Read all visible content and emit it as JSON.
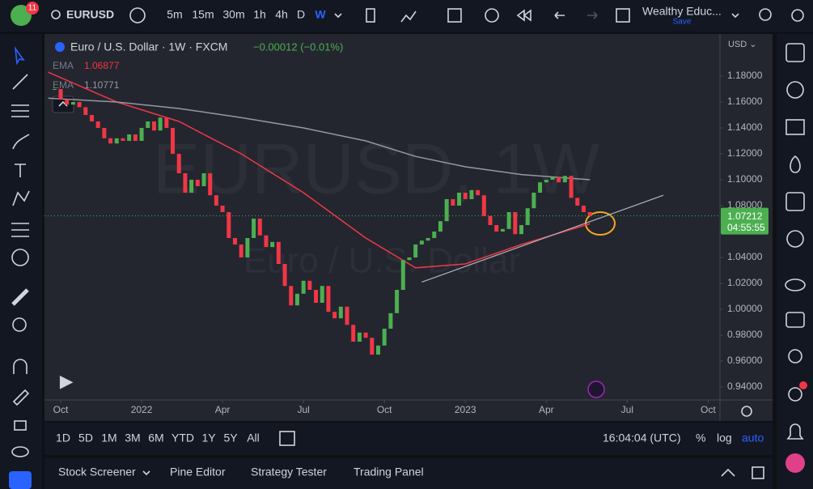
{
  "top_bar": {
    "badge": "11",
    "symbol": "EURUSD",
    "intervals": [
      "5m",
      "15m",
      "30m",
      "1h",
      "4h",
      "D",
      "W"
    ],
    "layout_name": "Wealthy Educ...",
    "save": "Save"
  },
  "chart_data": {
    "type": "candlestick",
    "title": "Euro / U.S. Dollar · 1W · FXCM",
    "change": "−0.00012 (−0.01%)",
    "watermark": "EURUSD, 1W",
    "watermark_subtitle": "Euro / U.S. Dollar",
    "currency": "USD ⌄",
    "x": [
      0,
      1,
      2,
      3,
      4,
      5,
      6,
      7,
      8,
      9,
      10,
      11,
      12,
      13,
      14,
      15,
      16,
      17,
      18,
      19,
      20,
      21,
      22,
      23,
      24,
      25,
      26,
      27,
      28,
      29,
      30,
      31,
      32,
      33,
      34,
      35,
      36,
      37,
      38,
      39,
      40,
      41,
      42,
      43,
      44,
      45,
      46,
      47,
      48,
      49,
      50,
      51,
      52,
      53,
      54,
      55,
      56,
      57,
      58,
      59,
      60,
      61,
      62,
      63,
      64,
      65,
      66,
      67,
      68,
      69,
      70,
      71,
      72,
      73,
      74,
      75,
      76,
      77,
      78,
      79,
      80,
      81,
      82,
      83,
      84,
      85,
      86
    ],
    "closes": [
      1.17,
      1.162,
      1.158,
      1.16,
      1.156,
      1.15,
      1.145,
      1.14,
      1.132,
      1.128,
      1.132,
      1.13,
      1.135,
      1.13,
      1.14,
      1.145,
      1.138,
      1.148,
      1.14,
      1.12,
      1.105,
      1.09,
      1.1,
      1.095,
      1.105,
      1.088,
      1.08,
      1.075,
      1.055,
      1.05,
      1.04,
      1.055,
      1.07,
      1.057,
      1.048,
      1.052,
      1.035,
      1.018,
      1.003,
      1.012,
      1.022,
      1.015,
      1.005,
      1.018,
      0.998,
      0.993,
      1.002,
      0.988,
      0.975,
      0.982,
      0.978,
      0.965,
      0.972,
      0.985,
      0.997,
      1.015,
      1.038,
      1.04,
      1.05,
      1.053,
      1.055,
      1.06,
      1.068,
      1.085,
      1.08,
      1.09,
      1.085,
      1.092,
      1.088,
      1.072,
      1.065,
      1.06,
      1.062,
      1.075,
      1.058,
      1.065,
      1.078,
      1.09,
      1.098,
      1.1,
      1.102,
      1.098,
      1.103,
      1.086,
      1.08,
      1.075,
      1.072
    ],
    "colors": {
      "up": "#4caf50",
      "down": "#f23645"
    },
    "xlim": [
      -1.6,
      106.9
    ],
    "xticks": [
      {
        "value": 1,
        "label": "Oct"
      },
      {
        "value": 14,
        "label": "2022"
      },
      {
        "value": 27,
        "label": "Apr"
      },
      {
        "value": 40,
        "label": "Jul"
      },
      {
        "value": 53,
        "label": "Oct"
      },
      {
        "value": 66,
        "label": "2023"
      },
      {
        "value": 79,
        "label": "Apr"
      },
      {
        "value": 92,
        "label": "Jul"
      },
      {
        "value": 105,
        "label": "Oct"
      }
    ],
    "ylim": [
      0.93,
      1.2125
    ],
    "yticks": [
      {
        "value": 1.18,
        "label": "1.18000"
      },
      {
        "value": 1.16,
        "label": "1.16000"
      },
      {
        "value": 1.14,
        "label": "1.14000"
      },
      {
        "value": 1.12,
        "label": "1.12000"
      },
      {
        "value": 1.1,
        "label": "1.10000"
      },
      {
        "value": 1.08,
        "label": "1.08000"
      },
      {
        "value": 1.04,
        "label": "1.04000"
      },
      {
        "value": 1.02,
        "label": "1.02000"
      },
      {
        "value": 1.0,
        "label": "1.00000"
      },
      {
        "value": 0.98,
        "label": "0.98000"
      },
      {
        "value": 0.96,
        "label": "0.96000"
      },
      {
        "value": 0.94,
        "label": "0.94000"
      }
    ],
    "indicators": [
      {
        "name": "EMA",
        "value_label": "1.06877",
        "color": "#f23645",
        "x": [
          -1,
          10,
          20,
          30,
          40,
          50,
          58,
          66,
          75,
          86
        ],
        "values": [
          1.183,
          1.16,
          1.145,
          1.12,
          1.09,
          1.055,
          1.032,
          1.035,
          1.05,
          1.066
        ]
      },
      {
        "name": "EMA",
        "value_label": "1.10771",
        "color": "#9598a1",
        "x": [
          -1,
          10,
          20,
          30,
          40,
          50,
          58,
          66,
          75,
          86
        ],
        "values": [
          1.163,
          1.16,
          1.155,
          1.148,
          1.14,
          1.13,
          1.118,
          1.11,
          1.104,
          1.1
        ]
      }
    ],
    "trendline": {
      "x": [
        59,
        97.8
      ],
      "y": [
        1.021,
        1.088
      ],
      "color": "#b2b5be"
    },
    "last_price": {
      "value": 1.07212,
      "label": "1.07212"
    },
    "countdown": "04:55:55"
  },
  "range_bar": {
    "ranges": [
      "1D",
      "5D",
      "1M",
      "3M",
      "6M",
      "YTD",
      "1Y",
      "5Y",
      "All"
    ],
    "clock": "16:04:04 (UTC)",
    "percent": "%",
    "log": "log",
    "auto": "auto"
  },
  "bottom_tabs": [
    "Stock Screener",
    "Pine Editor",
    "Strategy Tester",
    "Trading Panel"
  ]
}
